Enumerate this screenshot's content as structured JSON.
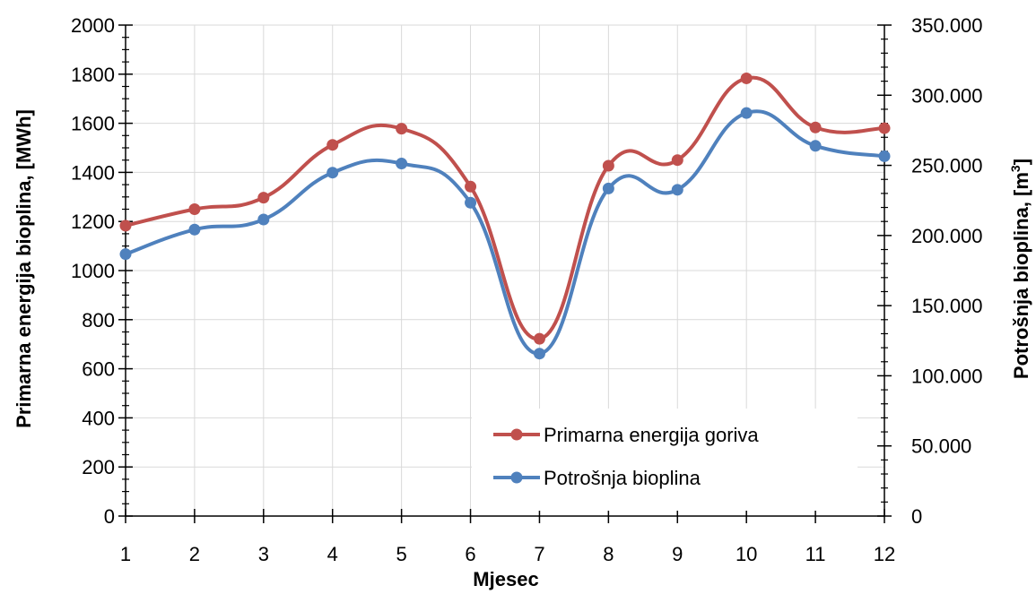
{
  "chart_data": {
    "type": "line",
    "title": "",
    "xlabel": "Mjesec",
    "ylabel_left": "Primarna energija bioplina, [MWh]",
    "ylabel_right_prefix": "Potrošnja bioplina, [m",
    "ylabel_right_sup": "3",
    "ylabel_right_suffix": "]",
    "x": [
      1,
      2,
      3,
      4,
      5,
      6,
      7,
      8,
      9,
      10,
      11,
      12
    ],
    "x_tick_labels": [
      "1",
      "2",
      "3",
      "4",
      "5",
      "6",
      "7",
      "8",
      "9",
      "10",
      "11",
      "12"
    ],
    "ylim_left": [
      0,
      2000
    ],
    "ylim_right": [
      0,
      350000
    ],
    "y_left_tick_labels": [
      "0",
      "200",
      "400",
      "600",
      "800",
      "1000",
      "1200",
      "1400",
      "1600",
      "1800",
      "2000"
    ],
    "y_right_tick_labels": [
      "0",
      "50.000",
      "100.000",
      "150.000",
      "200.000",
      "250.000",
      "300.000",
      "350.000"
    ],
    "grid": true,
    "legend_position": "bottom-center",
    "series": [
      {
        "name": "Primarna energija goriva",
        "axis": "left",
        "color": "#c0504d",
        "values": [
          1183,
          1250,
          1297,
          1512,
          1578,
          1342,
          722,
          1427,
          1450,
          1783,
          1583,
          1580
        ]
      },
      {
        "name": "Potrošnja bioplina",
        "axis": "right",
        "color": "#4f81bd",
        "values": [
          186700,
          204200,
          211400,
          244800,
          251300,
          223400,
          115800,
          233500,
          232600,
          287300,
          263900,
          256500
        ]
      }
    ]
  }
}
